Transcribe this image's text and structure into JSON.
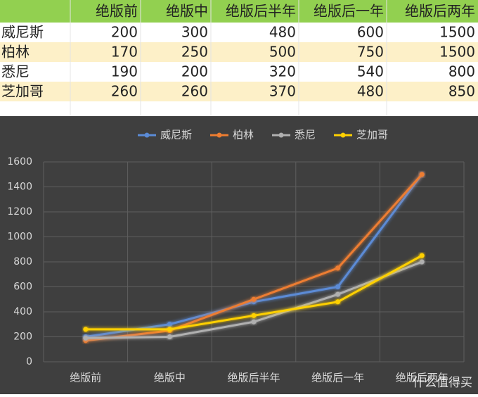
{
  "table": {
    "header": [
      "绝版前",
      "绝版中",
      "绝版后半年",
      "绝版后一年",
      "绝版后两年"
    ],
    "rows": [
      [
        "威尼斯",
        200,
        300,
        480,
        600,
        1500
      ],
      [
        "柏林",
        170,
        250,
        500,
        750,
        1500
      ],
      [
        "悉尼",
        190,
        200,
        320,
        540,
        800
      ],
      [
        "芝加哥",
        260,
        260,
        370,
        480,
        850
      ]
    ]
  },
  "chart_data": {
    "type": "line",
    "categories": [
      "绝版前",
      "绝版中",
      "绝版后半年",
      "绝版后一年",
      "绝版后两年"
    ],
    "series": [
      {
        "name": "威尼斯",
        "color": "#5b8bd6",
        "values": [
          200,
          300,
          480,
          600,
          1500
        ]
      },
      {
        "name": "柏林",
        "color": "#ed7d31",
        "values": [
          170,
          250,
          500,
          750,
          1500
        ]
      },
      {
        "name": "悉尼",
        "color": "#b0b0b0",
        "values": [
          190,
          200,
          320,
          540,
          800
        ]
      },
      {
        "name": "芝加哥",
        "color": "#ffd000",
        "values": [
          260,
          260,
          370,
          480,
          850
        ]
      }
    ],
    "ylim": [
      0,
      1600
    ],
    "yticks": [
      0,
      200,
      400,
      600,
      800,
      1000,
      1200,
      1400,
      1600
    ],
    "grid": true,
    "legend": "top"
  },
  "watermark": "什么值得买"
}
